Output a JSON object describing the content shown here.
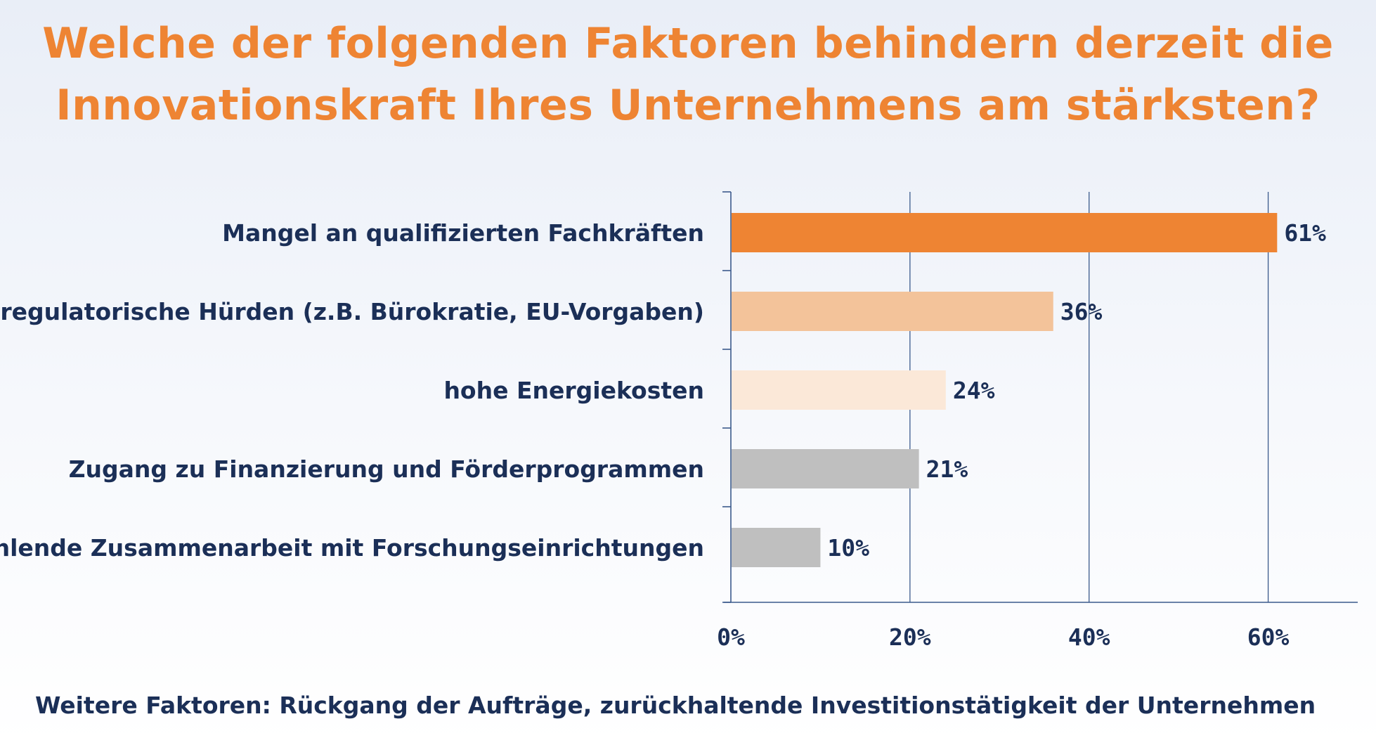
{
  "title": {
    "line1": "Welche der folgenden Faktoren behindern derzeit die",
    "line2": "Innovationskraft Ihres Unternehmens am stärksten?"
  },
  "footnote": "Weitere Faktoren: Rückgang der Aufträge, zurückhaltende Investitionstätigkeit der Unternehmen",
  "colors": {
    "title": "#ee8433",
    "text": "#1b2f57",
    "axis": "#3b5a8c",
    "bars": [
      "#ee8433",
      "#f3c39a",
      "#fbe8d8",
      "#bfbfbf",
      "#bfbfbf"
    ]
  },
  "chart_data": {
    "type": "bar",
    "orientation": "horizontal",
    "title": "",
    "xlabel": "",
    "ylabel": "",
    "categories": [
      "Mangel an qualifizierten Fachkräften",
      "regulatorische Hürden (z.B. Bürokratie, EU-Vorgaben)",
      "hohe Energiekosten",
      "Zugang zu Finanzierung und Förderprogrammen",
      "fehlende Zusammenarbeit mit Forschungseinrichtungen"
    ],
    "values": [
      61,
      36,
      24,
      21,
      10
    ],
    "value_labels": [
      "61%",
      "36%",
      "24%",
      "21%",
      "10%"
    ],
    "xlim": [
      0,
      70
    ],
    "xticks": [
      0,
      20,
      40,
      60
    ],
    "xtick_labels": [
      "0%",
      "20%",
      "40%",
      "60%"
    ],
    "grid": true,
    "legend": "none"
  }
}
